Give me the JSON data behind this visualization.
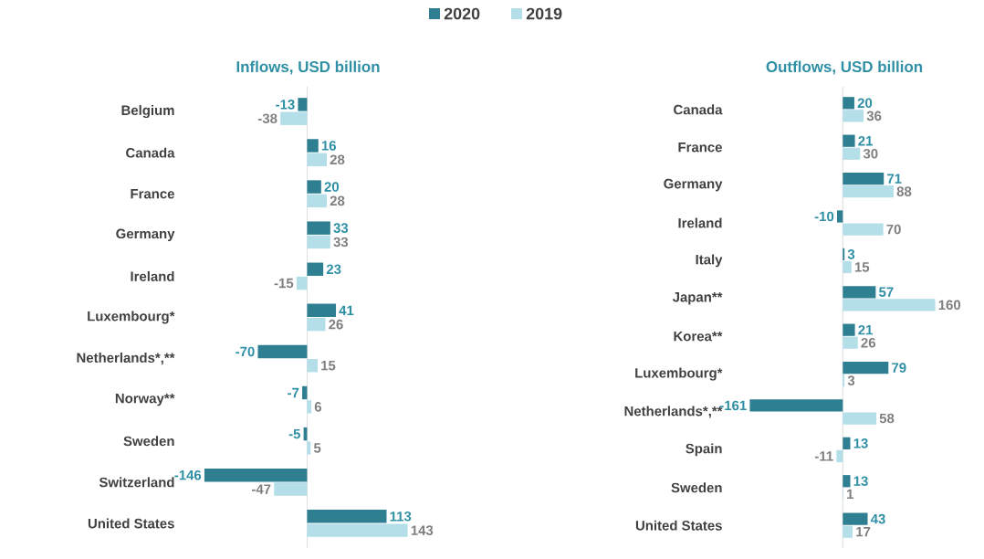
{
  "chart_data": [
    {
      "type": "bar",
      "orientation": "horizontal",
      "title": "Inflows, USD billion",
      "legend": "top",
      "data_labels": true,
      "categories": [
        "Belgium",
        "Canada",
        "France",
        "Germany",
        "Ireland",
        "Luxembourg*",
        "Netherlands*,**",
        "Norway**",
        "Sweden",
        "Switzerland",
        "United States"
      ],
      "series": [
        {
          "name": "2020",
          "color": "#2e7f91",
          "values": [
            -13,
            16,
            20,
            33,
            23,
            41,
            -70,
            -7,
            -5,
            -146,
            113
          ]
        },
        {
          "name": "2019",
          "color": "#b4dfe9",
          "values": [
            -38,
            28,
            28,
            33,
            -15,
            26,
            15,
            6,
            5,
            -47,
            143
          ]
        }
      ]
    },
    {
      "type": "bar",
      "orientation": "horizontal",
      "title": "Outflows, USD billion",
      "data_labels": true,
      "categories": [
        "Canada",
        "France",
        "Germany",
        "Ireland",
        "Italy",
        "Japan**",
        "Korea**",
        "Luxembourg*",
        "Netherlands*,**",
        "Spain",
        "Sweden",
        "United States"
      ],
      "series": [
        {
          "color": "#2e7f91",
          "values": [
            20,
            21,
            71,
            -10,
            3,
            57,
            21,
            79,
            -161,
            13,
            13,
            43
          ]
        },
        {
          "color": "#b4dfe9",
          "values": [
            36,
            30,
            88,
            70,
            15,
            160,
            26,
            3,
            58,
            -11,
            1,
            17
          ]
        }
      ]
    }
  ]
}
